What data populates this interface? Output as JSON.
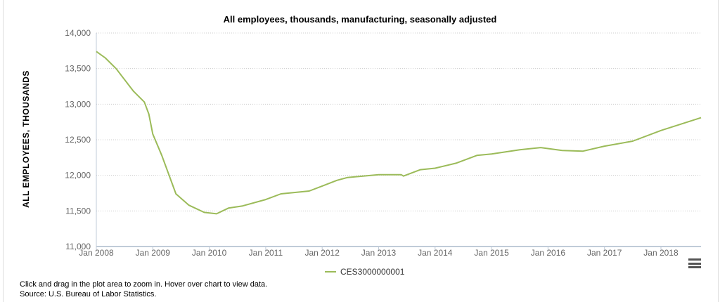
{
  "chart_data": {
    "type": "line",
    "title": "All employees, thousands, manufacturing, seasonally adjusted",
    "xlabel": "",
    "ylabel": "ALL EMPLOYEES, THOUSANDS",
    "ylim": [
      11000,
      14000
    ],
    "yticks": [
      "11,000",
      "11,500",
      "12,000",
      "12,500",
      "13,000",
      "13,500",
      "14,000"
    ],
    "ytick_values": [
      11000,
      11500,
      12000,
      12500,
      13000,
      13500,
      14000
    ],
    "xlim": [
      2008.0,
      2018.71
    ],
    "xticks": [
      "Jan 2008",
      "Jan 2009",
      "Jan 2010",
      "Jan 2011",
      "Jan 2012",
      "Jan 2013",
      "Jan 2014",
      "Jan 2015",
      "Jan 2016",
      "Jan 2017",
      "Jan 2018"
    ],
    "xtick_values": [
      2008,
      2009,
      2010,
      2011,
      2012,
      2013,
      2014,
      2015,
      2016,
      2017,
      2018
    ],
    "grid": true,
    "legend_position": "bottom-center",
    "series": [
      {
        "name": "CES3000000001",
        "color": "#9bbb59",
        "x": [
          2008.0,
          2008.16,
          2008.35,
          2008.66,
          2008.85,
          2008.93,
          2009.0,
          2009.16,
          2009.41,
          2009.64,
          2009.91,
          2010.13,
          2010.34,
          2010.59,
          2011.0,
          2011.27,
          2011.77,
          2012.0,
          2012.26,
          2012.45,
          2013.0,
          2013.4,
          2013.44,
          2013.74,
          2014.0,
          2014.37,
          2014.74,
          2015.0,
          2015.5,
          2015.87,
          2016.25,
          2016.62,
          2017.0,
          2017.5,
          2018.0,
          2018.71
        ],
        "values": [
          13740,
          13650,
          13500,
          13180,
          13030,
          12860,
          12580,
          12280,
          11740,
          11580,
          11480,
          11460,
          11540,
          11570,
          11660,
          11740,
          11780,
          11850,
          11930,
          11970,
          12010,
          12010,
          11990,
          12080,
          12100,
          12170,
          12280,
          12300,
          12360,
          12390,
          12350,
          12340,
          12410,
          12480,
          12630,
          12810
        ]
      }
    ]
  },
  "legend": {
    "label": "CES3000000001"
  },
  "notes": {
    "line1": "Click and drag in the plot area to zoom in. Hover over chart to view data.",
    "line2": "Source: U.S. Bureau of Labor Statistics."
  }
}
